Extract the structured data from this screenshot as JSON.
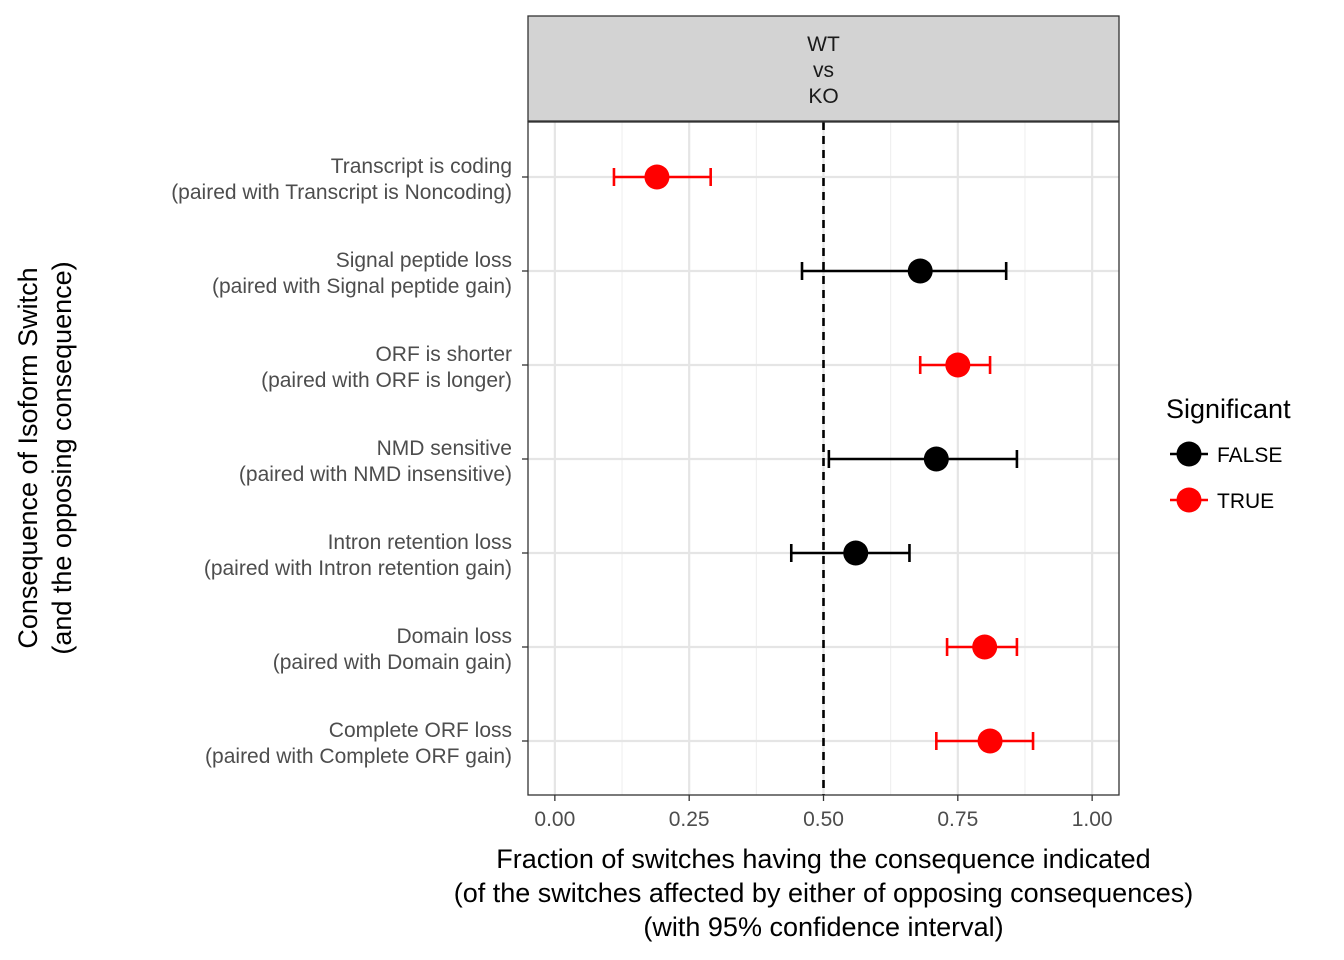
{
  "chart_data": {
    "type": "scatter",
    "facet_label": [
      "WT",
      "vs",
      "KO"
    ],
    "categories": [
      {
        "main": "Transcript is coding",
        "paired": "(paired with Transcript is Noncoding)"
      },
      {
        "main": "Signal peptide loss",
        "paired": "(paired with Signal peptide gain)"
      },
      {
        "main": "ORF is shorter",
        "paired": "(paired with ORF is longer)"
      },
      {
        "main": "NMD sensitive",
        "paired": "(paired with NMD insensitive)"
      },
      {
        "main": "Intron retention loss",
        "paired": "(paired with Intron retention gain)"
      },
      {
        "main": "Domain loss",
        "paired": "(paired with Domain gain)"
      },
      {
        "main": "Complete ORF loss",
        "paired": "(paired with Complete ORF gain)"
      }
    ],
    "points": [
      {
        "value": 0.19,
        "lower": 0.11,
        "upper": 0.29,
        "significant": "TRUE"
      },
      {
        "value": 0.68,
        "lower": 0.46,
        "upper": 0.84,
        "significant": "FALSE"
      },
      {
        "value": 0.75,
        "lower": 0.68,
        "upper": 0.81,
        "significant": "TRUE"
      },
      {
        "value": 0.71,
        "lower": 0.51,
        "upper": 0.86,
        "significant": "FALSE"
      },
      {
        "value": 0.56,
        "lower": 0.44,
        "upper": 0.66,
        "significant": "FALSE"
      },
      {
        "value": 0.8,
        "lower": 0.73,
        "upper": 0.86,
        "significant": "TRUE"
      },
      {
        "value": 0.81,
        "lower": 0.71,
        "upper": 0.89,
        "significant": "TRUE"
      }
    ],
    "xlim": [
      -0.05,
      1.05
    ],
    "xticks": [
      0,
      0.25,
      0.5,
      0.75,
      1
    ],
    "xtick_labels": [
      "0.00",
      "0.25",
      "0.50",
      "0.75",
      "1.00"
    ],
    "reference_line": 0.5,
    "xlabel": [
      "Fraction of switches having the consequence indicated",
      "(of the switches affected by either of opposing consequences)",
      "(with 95% confidence interval)"
    ],
    "ylabel": [
      "Consequence of Isoform Switch",
      "(and the opposing consequence)"
    ],
    "legend": {
      "title": "Significant",
      "position": "right",
      "entries": [
        {
          "label": "FALSE",
          "color": "#000000"
        },
        {
          "label": "TRUE",
          "color": "#ff0000"
        }
      ]
    },
    "grid": true
  }
}
